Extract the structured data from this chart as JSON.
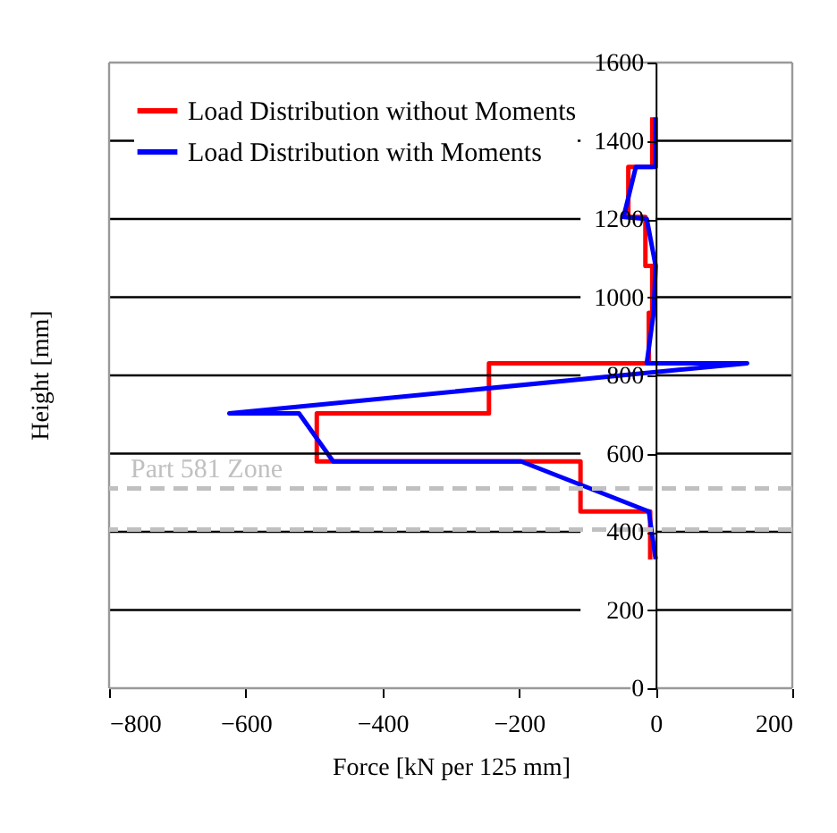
{
  "chart_data": {
    "type": "line",
    "xlabel": "Force [kN per 125 mm]",
    "ylabel": "Height [mm]",
    "xlim": [
      -800,
      200
    ],
    "xticks": [
      -800,
      -600,
      -400,
      -200,
      0,
      200
    ],
    "ylim": [
      0,
      1600
    ],
    "yticks": [
      0,
      200,
      400,
      600,
      800,
      1000,
      1200,
      1400,
      1600
    ],
    "grid": "y",
    "legend": "top left",
    "line_style": "solid",
    "series": [
      {
        "name": "Load Distribution without Moments",
        "color": "#ff0000",
        "x": [
          -8,
          -8,
          -110,
          -110,
          -496,
          -496,
          -244,
          -244,
          -10,
          -10,
          -5,
          -5,
          -15,
          -15,
          -40,
          -40,
          -5,
          -5
        ],
        "values": [
          329,
          452,
          452,
          580,
          580,
          703,
          703,
          831,
          831,
          960,
          960,
          1080,
          1080,
          1205,
          1205,
          1333,
          1333,
          1460
        ]
      },
      {
        "name": "Load Distribution with Moments",
        "color": "#0000ff",
        "x": [
          0,
          -10,
          -197,
          -472,
          -522,
          -624,
          134,
          -13,
          -3,
          0,
          -13,
          -47,
          -29,
          0,
          0
        ],
        "values": [
          330,
          452,
          580,
          580,
          703,
          703,
          831,
          831,
          960,
          1080,
          1200,
          1205,
          1333,
          1333,
          1460
        ]
      }
    ],
    "ref_lines": [
      {
        "axis": "y",
        "value": 511,
        "label": "Part 581 Zone",
        "color": "#c0c0c0",
        "line_style": "dashed"
      },
      {
        "axis": "y",
        "value": 406,
        "color": "#c0c0c0",
        "line_style": "dashed"
      }
    ]
  }
}
